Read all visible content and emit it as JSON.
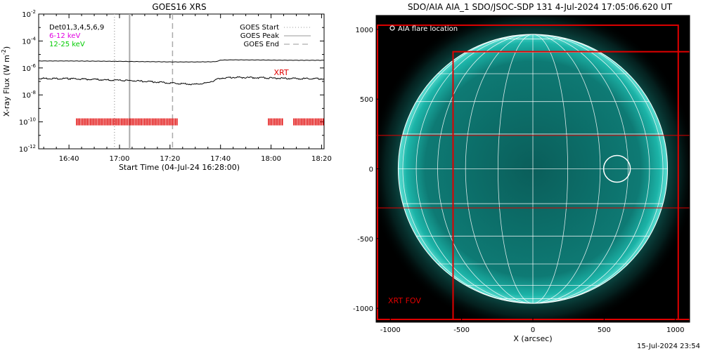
{
  "footer_timestamp": "15-Jul-2024 23:54",
  "chart_data": [
    {
      "type": "line",
      "title": "GOES16 XRS",
      "xlabel": "Start Time (04-Jul-24 16:28:00)",
      "ylabel": "X-ray Flux (W m",
      "ylabel_exponent": "-2",
      "ylabel_close": ")",
      "ylog": true,
      "ylim": [
        1e-12,
        0.01
      ],
      "xlim": [
        "16:28",
        "18:21"
      ],
      "x_ticks": [
        "16:40",
        "17:00",
        "17:20",
        "17:40",
        "18:00",
        "18:20"
      ],
      "y_ticks": [
        {
          "value": 0.01,
          "base": "10",
          "exp": "-2"
        },
        {
          "value": 0.0001,
          "base": "10",
          "exp": "-4"
        },
        {
          "value": 1e-06,
          "base": "10",
          "exp": "-6"
        },
        {
          "value": 1e-08,
          "base": "10",
          "exp": "-8"
        },
        {
          "value": 1e-10,
          "base": "10",
          "exp": "-10"
        },
        {
          "value": 1e-12,
          "base": "10",
          "exp": "-12"
        }
      ],
      "legend_left": [
        {
          "text": "Det01,3,4,5,6,9",
          "color": "#000000"
        },
        {
          "text": "6-12 keV",
          "color": "#e000e0"
        },
        {
          "text": "12-25 keV",
          "color": "#00cc00"
        }
      ],
      "legend_right": [
        {
          "text": "GOES Start",
          "style": "dotted",
          "color": "#999999"
        },
        {
          "text": "GOES Peak",
          "style": "solid",
          "color": "#999999"
        },
        {
          "text": "GOES End",
          "style": "dashed",
          "color": "#999999"
        }
      ],
      "series": [
        {
          "name": "",
          "color": "#000000",
          "x": [
            "16:28",
            "16:40",
            "16:50",
            "17:00",
            "17:05",
            "17:15",
            "17:20",
            "17:30",
            "17:38",
            "17:40",
            "17:45",
            "17:55",
            "18:00",
            "18:10",
            "18:21"
          ],
          "y": [
            3.3e-06,
            3.3e-06,
            3.2e-06,
            3.1e-06,
            3e-06,
            2.9e-06,
            2.8e-06,
            2.8e-06,
            2.9e-06,
            3.8e-06,
            4e-06,
            3.9e-06,
            3.8e-06,
            3.7e-06,
            3.7e-06
          ]
        },
        {
          "name": "",
          "color": "#000000",
          "x": [
            "16:28",
            "16:40",
            "16:50",
            "17:00",
            "17:05",
            "17:15",
            "17:20",
            "17:30",
            "17:35",
            "17:40",
            "17:45",
            "17:55",
            "18:00",
            "18:10",
            "18:21"
          ],
          "y": [
            1.7e-07,
            1.6e-07,
            1.4e-07,
            1.2e-07,
            1.15e-07,
            9e-08,
            7.5e-08,
            6e-08,
            8e-08,
            1.8e-07,
            2e-07,
            1.9e-07,
            1.8e-07,
            1.6e-07,
            1.6e-07
          ]
        }
      ],
      "vlines": [
        {
          "name": "GOES Start",
          "x": "16:58",
          "style": "dotted"
        },
        {
          "name": "GOES Peak",
          "x": "17:04",
          "style": "solid"
        },
        {
          "name": "GOES End",
          "x": "17:21",
          "style": "dashed"
        }
      ],
      "xrt": {
        "label": "XRT",
        "y": 1e-10,
        "intervals": [
          [
            "16:43",
            "17:23"
          ],
          [
            "17:59",
            "18:05"
          ],
          [
            "18:09",
            "18:21"
          ]
        ]
      }
    },
    {
      "type": "image",
      "title": "SDO/AIA AIA_1 SDO/JSOC-SDP 131  4-Jul-2024 17:05:06.620 UT",
      "xlabel": "X (arcsec)",
      "ylabel": "",
      "xlim": [
        -1100,
        1100
      ],
      "ylim": [
        -1100,
        1100
      ],
      "x_ticks": [
        -1000,
        -500,
        0,
        500,
        1000
      ],
      "y_ticks": [
        1000,
        500,
        0,
        -500,
        -1000
      ],
      "solar_radius_arcsec": 945,
      "disk_color": "#0c7e78",
      "flare_legend": "AIA flare location",
      "flare_location": {
        "x": 590,
        "y": 0
      },
      "xrt_fov_label": "XRT FOV",
      "fov_boxes": [
        {
          "x": [
            -1090,
            1020
          ],
          "y": [
            -1080,
            1030
          ]
        },
        {
          "x": [
            -560,
            1120
          ],
          "y": [
            -1080,
            840
          ]
        }
      ],
      "fov_hlines": [
        240,
        -280
      ]
    }
  ]
}
